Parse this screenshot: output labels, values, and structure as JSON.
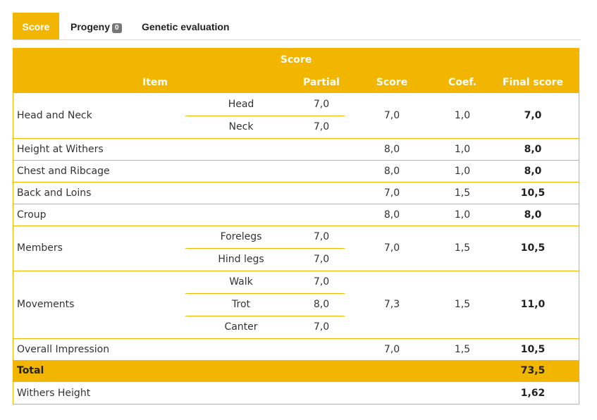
{
  "tabs": {
    "score": "Score",
    "progeny": "Progeny",
    "progeny_count": "0",
    "genetic": "Genetic evaluation"
  },
  "table": {
    "title": "Score",
    "headers": {
      "item": "Item",
      "partial": "Partial",
      "score": "Score",
      "coef": "Coef.",
      "final": "Final score"
    },
    "rows": [
      {
        "item": "Head and Neck",
        "parts": [
          {
            "name": "Head",
            "value": "7,0"
          },
          {
            "name": "Neck",
            "value": "7,0"
          }
        ],
        "score": "7,0",
        "coef": "1,0",
        "final": "7,0"
      },
      {
        "item": "Height at Withers",
        "score": "8,0",
        "coef": "1,0",
        "final": "8,0"
      },
      {
        "item": "Chest and Ribcage",
        "score": "8,0",
        "coef": "1,0",
        "final": "8,0"
      },
      {
        "item": "Back and Loins",
        "score": "7,0",
        "coef": "1,5",
        "final": "10,5"
      },
      {
        "item": "Croup",
        "score": "8,0",
        "coef": "1,0",
        "final": "8,0"
      },
      {
        "item": "Members",
        "parts": [
          {
            "name": "Forelegs",
            "value": "7,0"
          },
          {
            "name": "Hind legs",
            "value": "7,0"
          }
        ],
        "score": "7,0",
        "coef": "1,5",
        "final": "10,5"
      },
      {
        "item": "Movements",
        "parts": [
          {
            "name": "Walk",
            "value": "7,0"
          },
          {
            "name": "Trot",
            "value": "8,0"
          },
          {
            "name": "Canter",
            "value": "7,0"
          }
        ],
        "score": "7,3",
        "coef": "1,5",
        "final": "11,0"
      },
      {
        "item": "Overall Impression",
        "score": "7,0",
        "coef": "1,5",
        "final": "10,5"
      }
    ],
    "total": {
      "label": "Total",
      "final": "73,5"
    },
    "withers": {
      "label": "Withers Height",
      "final": "1,62"
    }
  },
  "colors": {
    "accent": "#f2b600",
    "badge": "#777777"
  }
}
